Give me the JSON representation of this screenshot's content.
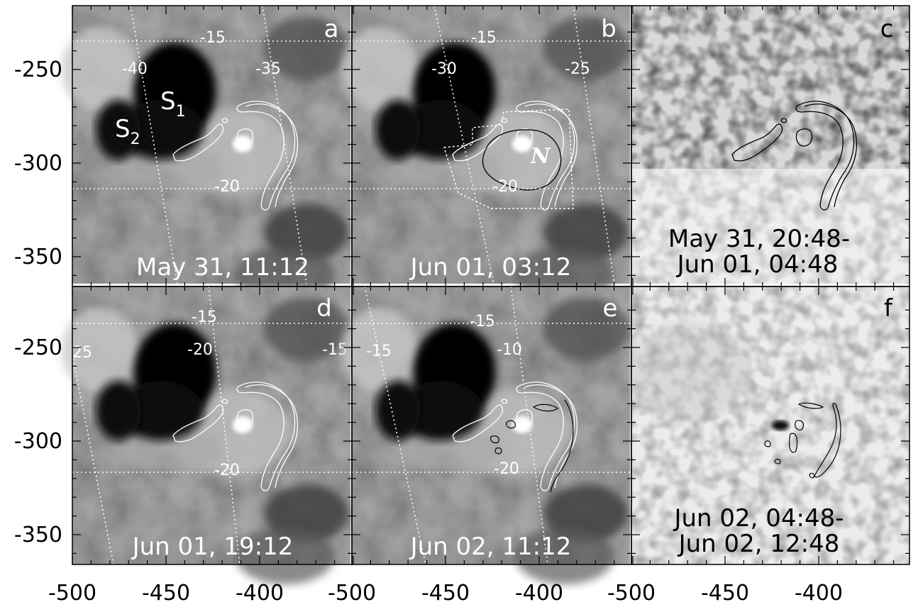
{
  "x_ticks": [
    "-500",
    "-450",
    "-400"
  ],
  "y_ticks": [
    "-250",
    "-300",
    "-350"
  ],
  "panels": [
    {
      "letter": "a",
      "timestamp": [
        "May 31, 11:12"
      ],
      "kind": "magnetogram",
      "lon_labels": [
        "-40",
        "-35"
      ],
      "lat_labels": [
        "-15",
        "-20"
      ],
      "spot_labels": [
        {
          "main": "S",
          "sub": "1"
        },
        {
          "main": "S",
          "sub": "2"
        }
      ]
    },
    {
      "letter": "b",
      "timestamp": [
        "Jun 01, 03:12"
      ],
      "kind": "magnetogram",
      "lon_labels": [
        "-30",
        "-25"
      ],
      "lat_labels": [
        "-15",
        "-20"
      ],
      "region_label": "N"
    },
    {
      "letter": "c",
      "timestamp": [
        "May 31, 20:48-",
        "Jun 01, 04:48"
      ],
      "kind": "difference"
    },
    {
      "letter": "d",
      "timestamp": [
        "Jun 01, 19:12"
      ],
      "kind": "magnetogram",
      "lon_labels": [
        "25",
        "-20",
        "-15"
      ],
      "lat_labels": [
        "-15",
        "-20"
      ]
    },
    {
      "letter": "e",
      "timestamp": [
        "Jun 02, 11:12"
      ],
      "kind": "magnetogram",
      "lon_labels": [
        "-15",
        "-10"
      ],
      "lat_labels": [
        "-15",
        "-20"
      ]
    },
    {
      "letter": "f",
      "timestamp": [
        "Jun 02, 04:48-",
        "Jun 02, 12:48"
      ],
      "kind": "difference"
    }
  ]
}
